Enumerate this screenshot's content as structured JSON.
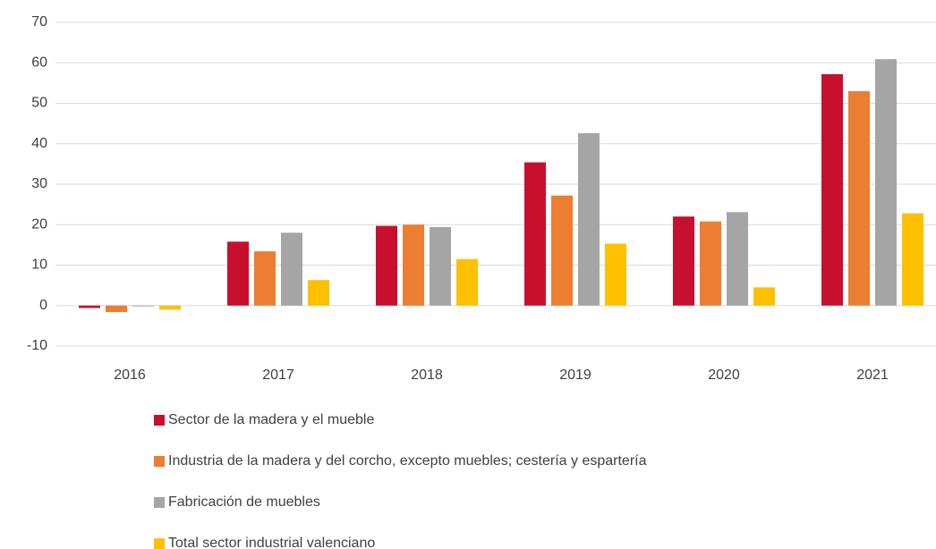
{
  "chart_data": {
    "type": "bar",
    "categories": [
      "2016",
      "2017",
      "2018",
      "2019",
      "2020",
      "2021"
    ],
    "series": [
      {
        "name": "Sector de la madera y el mueble",
        "color": "#c8102e",
        "values": [
          -0.6,
          15.8,
          19.7,
          35.4,
          22.0,
          57.2
        ]
      },
      {
        "name": "Industria de la madera y del corcho, excepto muebles; cestería y espartería",
        "color": "#ed7d31",
        "values": [
          -1.6,
          13.4,
          20.0,
          27.2,
          20.8,
          53.0
        ]
      },
      {
        "name": "Fabricación de muebles",
        "color": "#a5a5a5",
        "values": [
          -0.2,
          18.0,
          19.4,
          42.6,
          23.1,
          60.9
        ]
      },
      {
        "name": "Total sector industrial valenciano",
        "color": "#ffc000",
        "values": [
          -1.0,
          6.3,
          11.5,
          15.3,
          4.5,
          22.8
        ]
      }
    ],
    "ylim": [
      -10,
      70
    ],
    "yticks": [
      -10,
      0,
      10,
      20,
      30,
      40,
      50,
      60,
      70
    ],
    "grid": true,
    "legend": "bottom"
  }
}
